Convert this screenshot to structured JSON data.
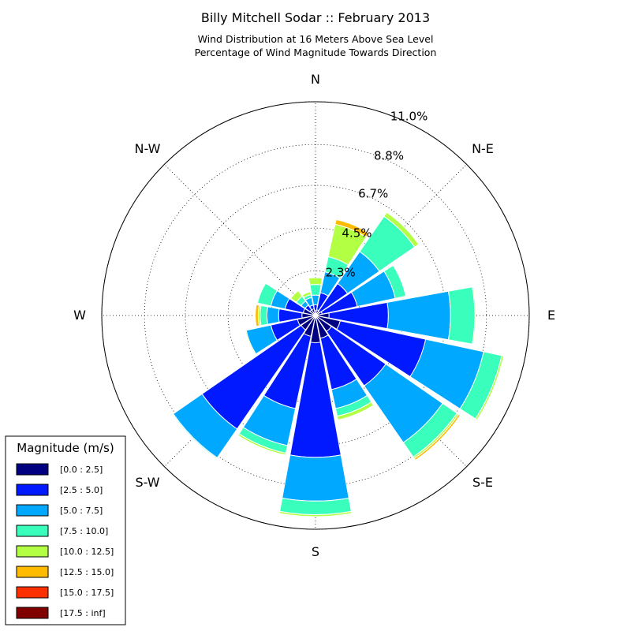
{
  "header": {
    "title": "Billy Mitchell Sodar :: February 2013",
    "subtitle_line1": "Wind Distribution at 16 Meters Above Sea Level",
    "subtitle_line2": "Percentage of Wind Magnitude Towards Direction"
  },
  "chart_data": {
    "type": "windrose",
    "title": "Billy Mitchell Sodar :: February 2013",
    "subtitle": [
      "Wind Distribution at 16 Meters Above Sea Level",
      "Percentage of Wind Magnitude Towards Direction"
    ],
    "direction_labels": [
      "N",
      "N-E",
      "E",
      "S-E",
      "S",
      "S-W",
      "W",
      "N-W"
    ],
    "radial_ticks": [
      "2.3%",
      "4.5%",
      "6.7%",
      "8.8%",
      "11.0%"
    ],
    "rmax_percent": 11.0,
    "legend_title": "Magnitude (m/s)",
    "legend_placement": "lower-left",
    "bins": [
      {
        "label": "[0.0 : 2.5]",
        "color": "#000080"
      },
      {
        "label": "[2.5 : 5.0]",
        "color": "#0019ff"
      },
      {
        "label": "[5.0 : 7.5]",
        "color": "#00a9ff"
      },
      {
        "label": "[7.5 : 10.0]",
        "color": "#3affbc"
      },
      {
        "label": "[10.0 : 12.5]",
        "color": "#b2ff43"
      },
      {
        "label": "[12.5 : 15.0]",
        "color": "#ffbb00"
      },
      {
        "label": "[15.0 : 17.5]",
        "color": "#ff3000"
      },
      {
        "label": "[17.5 : inf]",
        "color": "#800000"
      }
    ],
    "sectors_deg": [
      0,
      22.5,
      45,
      67.5,
      90,
      112.5,
      135,
      157.5,
      180,
      202.5,
      225,
      247.5,
      270,
      292.5,
      315,
      337.5
    ],
    "cumulative_percent": [
      [
        0.25,
        0.55,
        1.05,
        1.6,
        1.95,
        1.95,
        1.95,
        1.95
      ],
      [
        0.3,
        1.2,
        2.3,
        3.1,
        4.8,
        5.05,
        5.05,
        5.05
      ],
      [
        0.25,
        2.0,
        4.0,
        6.2,
        6.45,
        6.45,
        6.45,
        6.45
      ],
      [
        0.35,
        2.2,
        4.2,
        4.75,
        4.75,
        4.75,
        4.75,
        4.75
      ],
      [
        0.7,
        3.75,
        6.95,
        8.2,
        8.25,
        8.25,
        8.25,
        8.25
      ],
      [
        1.3,
        5.8,
        8.85,
        9.8,
        9.9,
        9.9,
        9.9,
        9.9
      ],
      [
        1.0,
        4.4,
        7.95,
        8.85,
        8.95,
        9.05,
        9.05,
        9.05
      ],
      [
        1.2,
        3.9,
        4.9,
        5.3,
        5.5,
        5.5,
        5.5,
        5.5
      ],
      [
        1.4,
        7.3,
        9.55,
        10.25,
        10.35,
        10.35,
        10.35,
        10.35
      ],
      [
        1.1,
        4.9,
        6.85,
        7.25,
        7.35,
        7.35,
        7.35,
        7.35
      ],
      [
        0.9,
        7.1,
        8.9,
        8.95,
        8.95,
        8.95,
        8.95,
        8.95
      ],
      [
        0.95,
        2.35,
        3.65,
        3.65,
        3.7,
        3.7,
        3.7,
        3.7
      ],
      [
        0.7,
        1.9,
        2.5,
        2.85,
        2.95,
        3.1,
        3.1,
        3.1
      ],
      [
        0.65,
        1.6,
        2.35,
        3.05,
        3.05,
        3.05,
        3.05,
        3.05
      ],
      [
        0.35,
        0.65,
        0.9,
        1.2,
        1.55,
        1.55,
        1.55,
        1.55
      ],
      [
        0.35,
        0.55,
        0.95,
        1.1,
        1.25,
        1.25,
        1.25,
        1.25
      ]
    ]
  }
}
